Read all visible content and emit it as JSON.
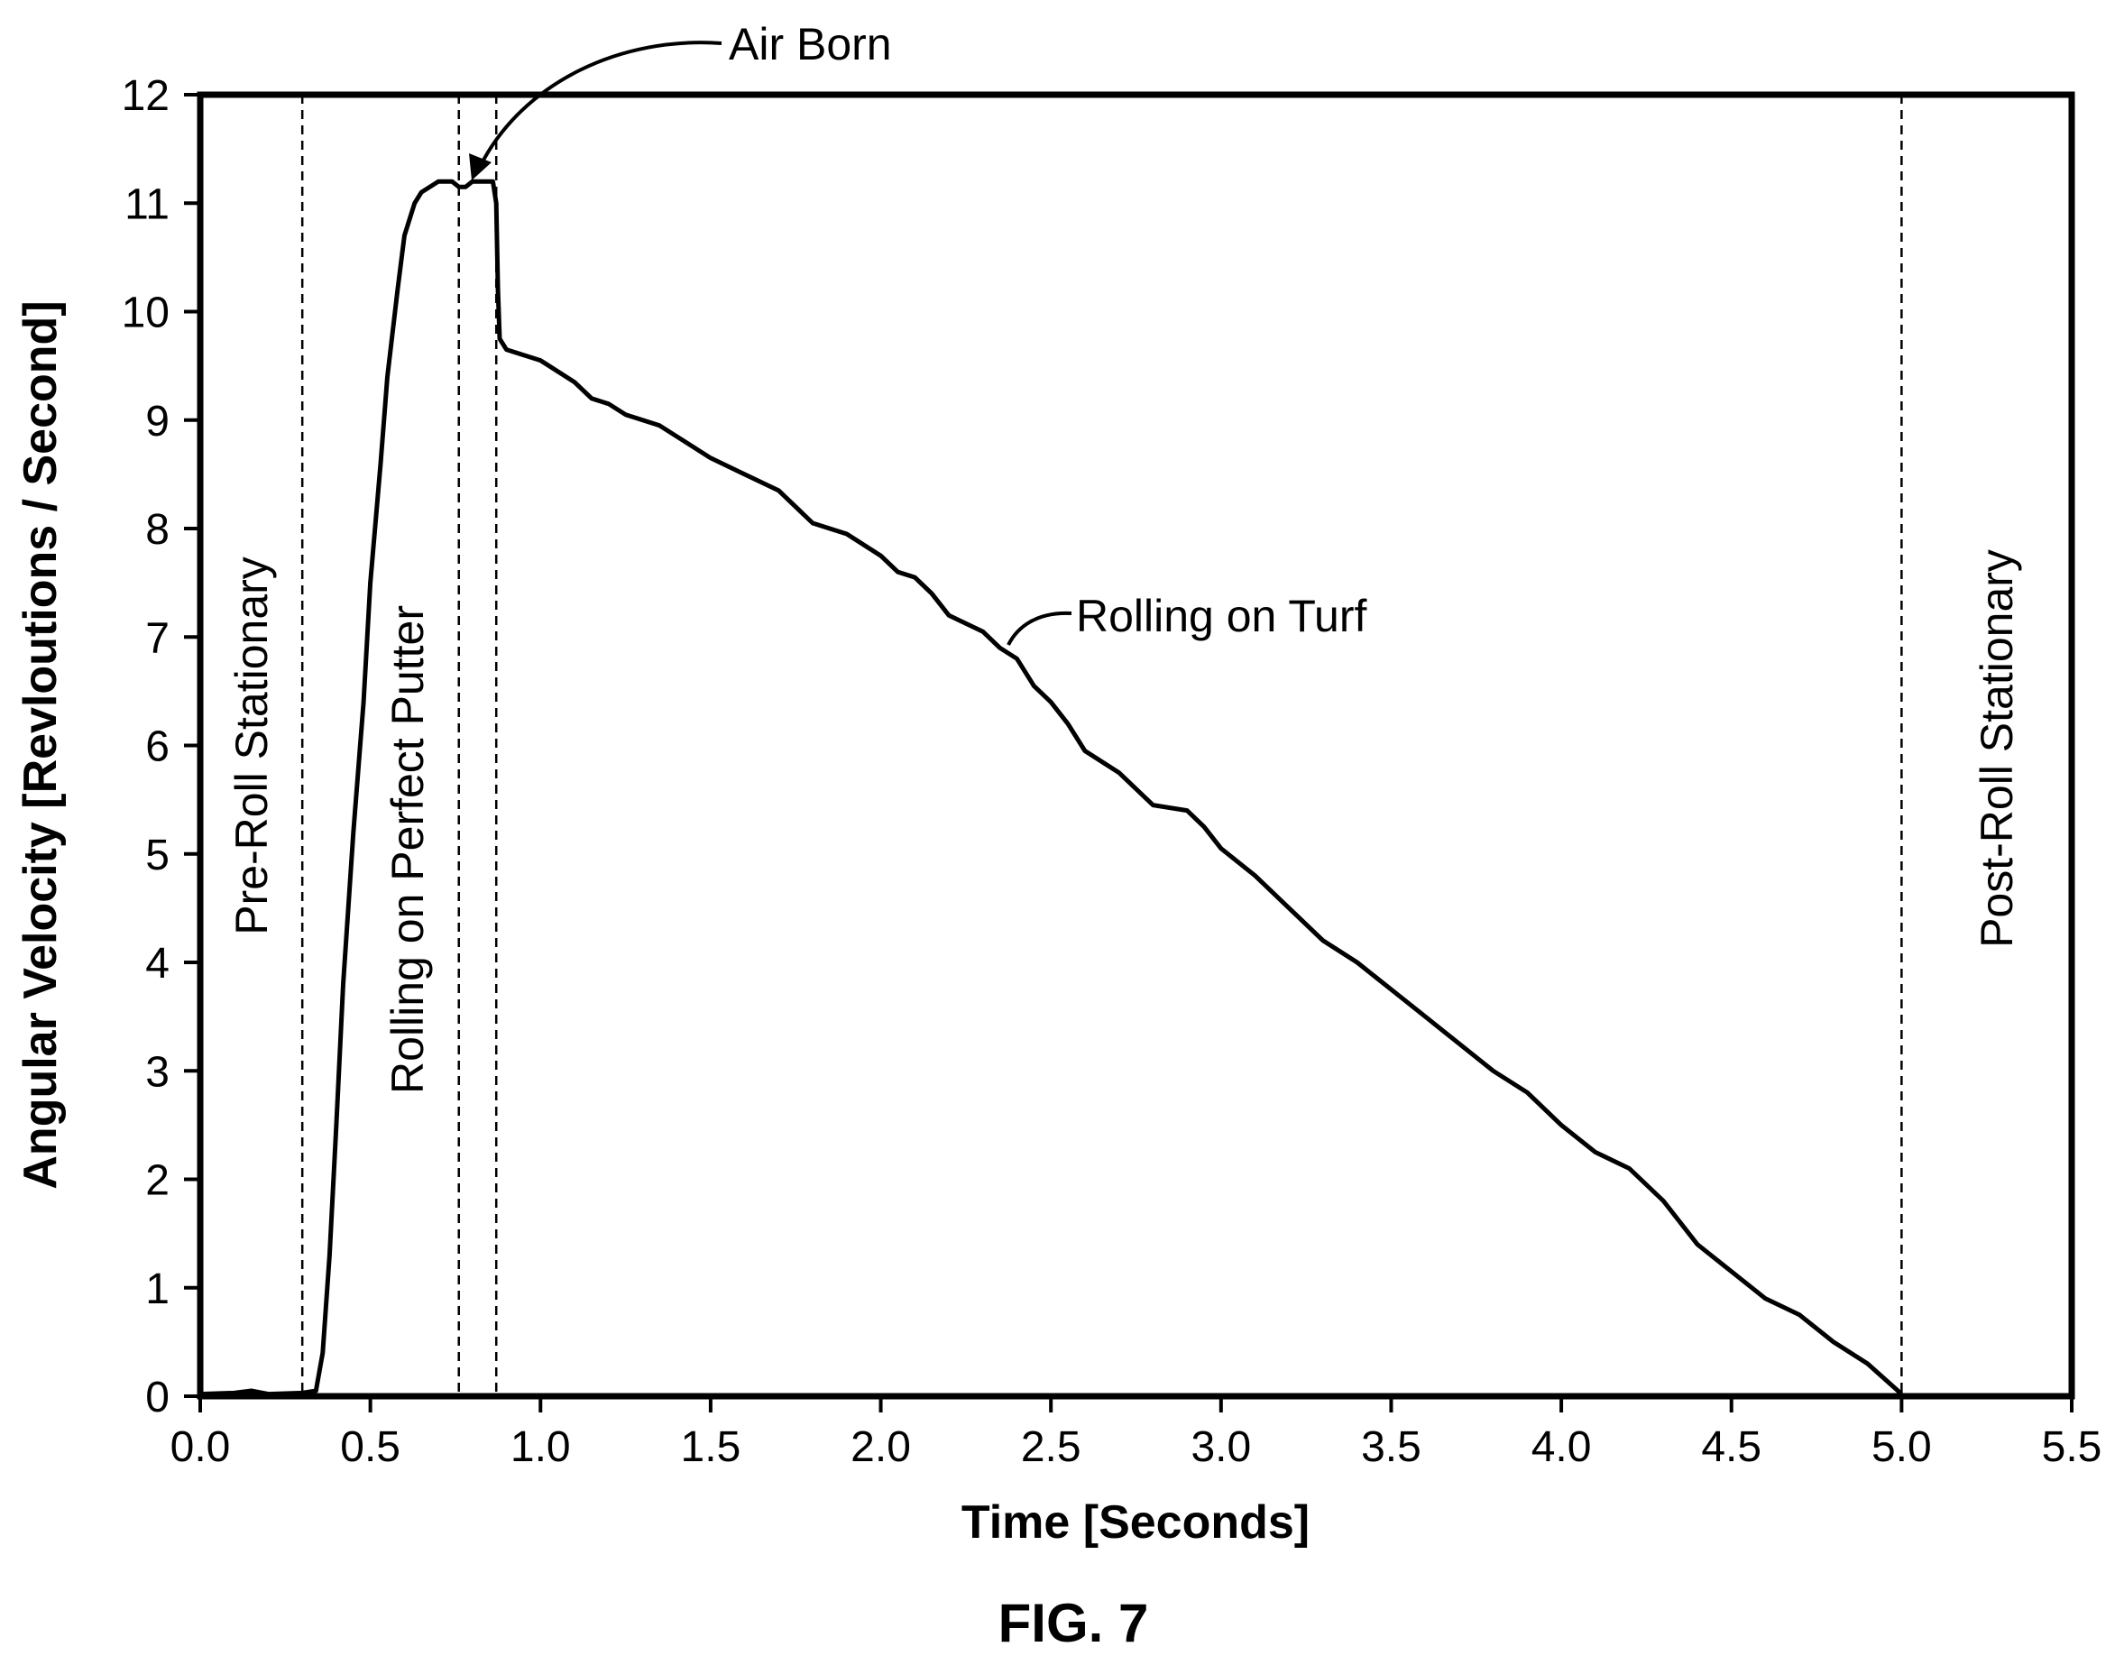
{
  "figure_label": "FIG. 7",
  "chart_data": {
    "type": "line",
    "title": "",
    "xlabel": "Time [Seconds]",
    "ylabel": "Angular Velocity [Revloutions / Second]",
    "xlim": [
      0.0,
      5.5
    ],
    "ylim": [
      0,
      12
    ],
    "xticks": [
      "0.0",
      "0.5",
      "1.0",
      "1.5",
      "2.0",
      "2.5",
      "3.0",
      "3.5",
      "4.0",
      "4.5",
      "5.0",
      "5.5"
    ],
    "yticks": [
      "0",
      "1",
      "2",
      "3",
      "4",
      "5",
      "6",
      "7",
      "8",
      "9",
      "10",
      "11",
      "12"
    ],
    "grid": false,
    "legend": "none",
    "line_color": "#000000",
    "phase_boundaries": [
      0.3,
      0.76,
      0.87,
      5.0
    ],
    "phase_labels": [
      "Pre-Roll Stationary",
      "Rolling on Perfect Putter",
      "Post-Roll Stationary"
    ],
    "annotations": [
      {
        "text": "Air Born",
        "x": 0.78,
        "y": 11.1
      },
      {
        "text": "Rolling on Turf",
        "x": 2.4,
        "y": 6.9
      }
    ],
    "series": [
      {
        "x": [
          0.0,
          0.1,
          0.15,
          0.2,
          0.3,
          0.34,
          0.36,
          0.38,
          0.4,
          0.42,
          0.45,
          0.48,
          0.5,
          0.53,
          0.55,
          0.58,
          0.6,
          0.63,
          0.65,
          0.7,
          0.74,
          0.76,
          0.78,
          0.8,
          0.83,
          0.86,
          0.87,
          0.875,
          0.88,
          0.9,
          0.95,
          1.0,
          1.05,
          1.1,
          1.15,
          1.2,
          1.25,
          1.3,
          1.35,
          1.4,
          1.5,
          1.6,
          1.7,
          1.8,
          1.9,
          2.0,
          2.05,
          2.1,
          2.15,
          2.2,
          2.3,
          2.35,
          2.4,
          2.45,
          2.5,
          2.55,
          2.6,
          2.7,
          2.8,
          2.9,
          2.95,
          3.0,
          3.1,
          3.2,
          3.3,
          3.4,
          3.5,
          3.6,
          3.7,
          3.8,
          3.9,
          4.0,
          4.1,
          4.2,
          4.3,
          4.4,
          4.5,
          4.6,
          4.7,
          4.8,
          4.9,
          5.0
        ],
        "y": [
          0.02,
          0.03,
          0.05,
          0.02,
          0.03,
          0.05,
          0.4,
          1.3,
          2.5,
          3.8,
          5.2,
          6.4,
          7.5,
          8.6,
          9.4,
          10.2,
          10.7,
          11.0,
          11.1,
          11.2,
          11.2,
          11.15,
          11.15,
          11.2,
          11.2,
          11.2,
          11.0,
          10.2,
          9.75,
          9.65,
          9.6,
          9.55,
          9.45,
          9.35,
          9.2,
          9.15,
          9.05,
          9.0,
          8.95,
          8.85,
          8.65,
          8.5,
          8.35,
          8.05,
          7.95,
          7.75,
          7.6,
          7.55,
          7.4,
          7.2,
          7.05,
          6.9,
          6.8,
          6.55,
          6.4,
          6.2,
          5.95,
          5.75,
          5.45,
          5.4,
          5.25,
          5.05,
          4.8,
          4.5,
          4.2,
          4.0,
          3.75,
          3.5,
          3.25,
          3.0,
          2.8,
          2.5,
          2.25,
          2.1,
          1.8,
          1.4,
          1.15,
          0.9,
          0.75,
          0.5,
          0.3,
          0.02
        ]
      }
    ]
  }
}
